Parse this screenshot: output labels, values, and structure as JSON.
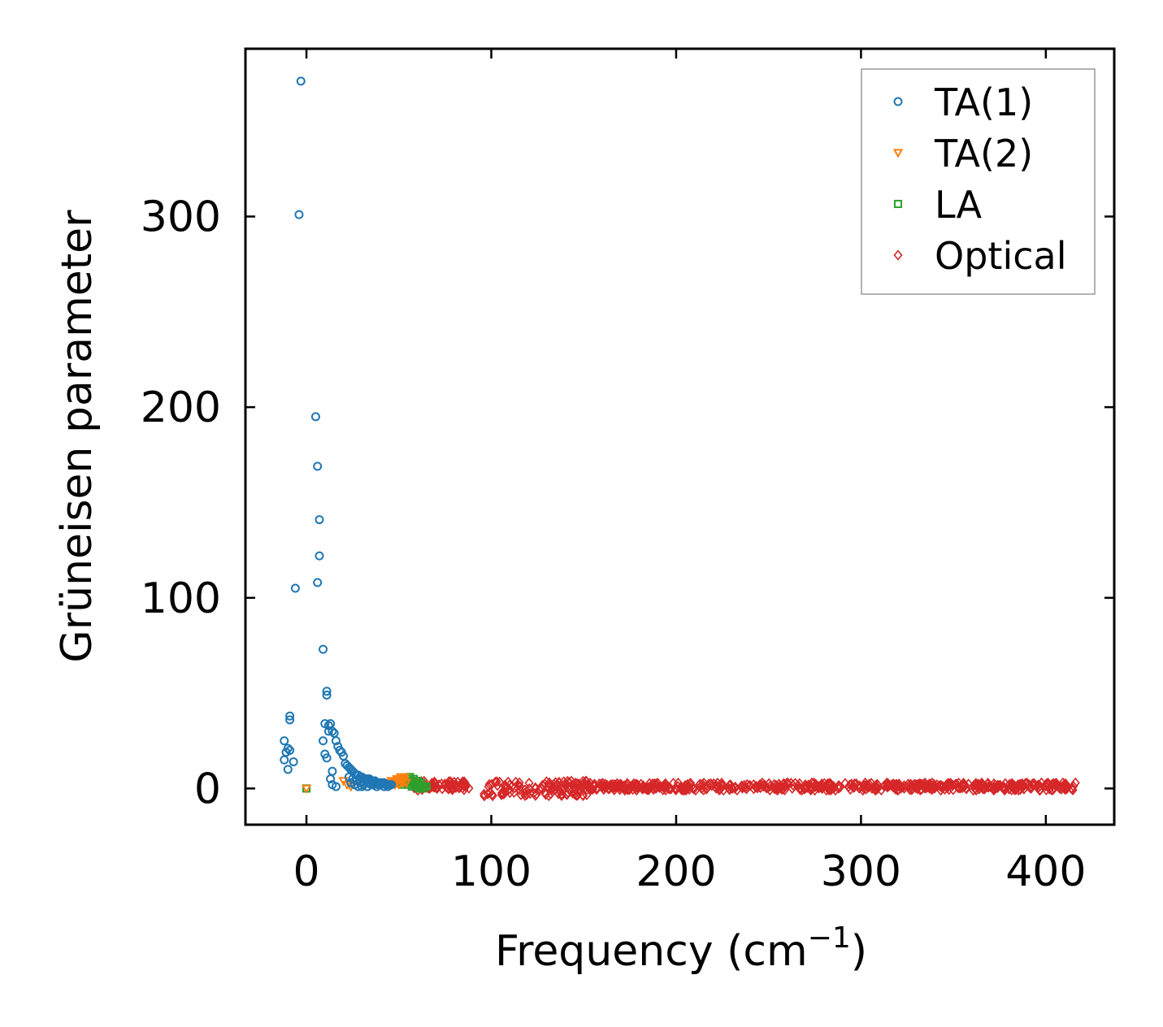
{
  "chart_data": {
    "type": "scatter",
    "xlabel": "Frequency (cm",
    "xlabel_sup": "−1",
    "xlabel_end": ")",
    "ylabel": "Grüneisen parameter",
    "xlim": [
      -33,
      437
    ],
    "ylim": [
      -19,
      388
    ],
    "xticks": [
      0,
      100,
      200,
      300,
      400
    ],
    "yticks": [
      0,
      100,
      200,
      300
    ],
    "grid": false,
    "legend_position": "top-right",
    "series": [
      {
        "name": "TA(1)",
        "marker": "circle",
        "color": "#1f77b4",
        "points": [
          [
            -3,
            371
          ],
          [
            -4,
            301
          ],
          [
            5,
            195
          ],
          [
            6,
            169
          ],
          [
            7,
            141
          ],
          [
            7,
            122
          ],
          [
            6,
            108
          ],
          [
            -6,
            105
          ],
          [
            9,
            73
          ],
          [
            11,
            51
          ],
          [
            11,
            49
          ],
          [
            -9,
            38
          ],
          [
            -9,
            36
          ],
          [
            10,
            34
          ],
          [
            12,
            33
          ],
          [
            13,
            34
          ],
          [
            14,
            30
          ],
          [
            12,
            30
          ],
          [
            15,
            29
          ],
          [
            9,
            25
          ],
          [
            16,
            25
          ],
          [
            17,
            22
          ],
          [
            -12,
            25
          ],
          [
            -10,
            21
          ],
          [
            -9,
            20
          ],
          [
            -11,
            19
          ],
          [
            18,
            20
          ],
          [
            19,
            19
          ],
          [
            10,
            18
          ],
          [
            11,
            16
          ],
          [
            20,
            17
          ],
          [
            -12,
            15
          ],
          [
            -7,
            14
          ],
          [
            -10,
            10
          ],
          [
            14,
            9
          ],
          [
            21,
            13
          ],
          [
            22,
            12
          ],
          [
            23,
            11
          ],
          [
            24,
            10
          ],
          [
            13,
            5
          ],
          [
            14,
            2
          ],
          [
            16,
            1
          ],
          [
            25,
            9
          ],
          [
            26,
            8
          ],
          [
            27,
            7
          ],
          [
            28,
            7
          ],
          [
            29,
            6
          ],
          [
            30,
            6
          ],
          [
            31,
            5
          ],
          [
            32,
            5
          ],
          [
            33,
            5
          ],
          [
            34,
            5
          ],
          [
            35,
            4
          ],
          [
            36,
            4
          ],
          [
            37,
            4
          ],
          [
            38,
            3
          ],
          [
            39,
            3
          ],
          [
            40,
            3
          ],
          [
            41,
            3
          ],
          [
            42,
            3
          ],
          [
            43,
            2
          ],
          [
            44,
            2
          ],
          [
            45,
            2
          ],
          [
            46,
            2
          ],
          [
            24,
            3
          ],
          [
            26,
            2
          ],
          [
            28,
            1
          ],
          [
            30,
            1
          ],
          [
            33,
            1
          ],
          [
            35,
            2
          ],
          [
            38,
            1
          ],
          [
            40,
            2
          ],
          [
            23,
            6
          ],
          [
            25,
            5
          ],
          [
            27,
            4
          ],
          [
            29,
            3
          ],
          [
            31,
            2
          ],
          [
            34,
            3
          ],
          [
            36,
            2
          ],
          [
            39,
            2
          ],
          [
            42,
            1
          ],
          [
            44,
            1
          ]
        ]
      },
      {
        "name": "TA(2)",
        "marker": "triangle-down",
        "color": "#ff7f0e",
        "points": [
          [
            0,
            0
          ],
          [
            20,
            4
          ],
          [
            22,
            2
          ],
          [
            24,
            1
          ],
          [
            30,
            2
          ],
          [
            36,
            2
          ],
          [
            40,
            3
          ],
          [
            44,
            3
          ],
          [
            46,
            4
          ],
          [
            47,
            3
          ],
          [
            48,
            4
          ],
          [
            49,
            3
          ],
          [
            50,
            5
          ],
          [
            51,
            4
          ],
          [
            52,
            5
          ],
          [
            53,
            4
          ],
          [
            54,
            3
          ],
          [
            48,
            2
          ],
          [
            50,
            2
          ],
          [
            52,
            3
          ],
          [
            46,
            2
          ],
          [
            49,
            5
          ],
          [
            51,
            6
          ],
          [
            53,
            6
          ]
        ]
      },
      {
        "name": "LA",
        "marker": "square",
        "color": "#2ca02c",
        "points": [
          [
            0,
            0
          ],
          [
            52,
            2
          ],
          [
            53,
            3
          ],
          [
            54,
            4
          ],
          [
            55,
            5
          ],
          [
            56,
            4
          ],
          [
            57,
            3
          ],
          [
            58,
            3
          ],
          [
            59,
            2
          ],
          [
            60,
            2
          ],
          [
            61,
            2
          ],
          [
            62,
            1
          ],
          [
            63,
            1
          ],
          [
            64,
            1
          ],
          [
            55,
            2
          ],
          [
            57,
            1
          ],
          [
            59,
            1
          ],
          [
            61,
            0
          ],
          [
            63,
            0
          ],
          [
            65,
            1
          ],
          [
            56,
            6
          ],
          [
            58,
            5
          ],
          [
            60,
            4
          ],
          [
            62,
            3
          ]
        ]
      },
      {
        "name": "Optical",
        "marker": "diamond",
        "color": "#d62728",
        "ranges": [
          {
            "x": [
              58,
              88
            ],
            "y": [
              -1,
              4
            ]
          },
          {
            "x": [
              96,
              152
            ],
            "y": [
              -4,
              4
            ]
          },
          {
            "x": [
              152,
              416
            ],
            "y": [
              -1,
              3
            ]
          }
        ]
      }
    ]
  }
}
